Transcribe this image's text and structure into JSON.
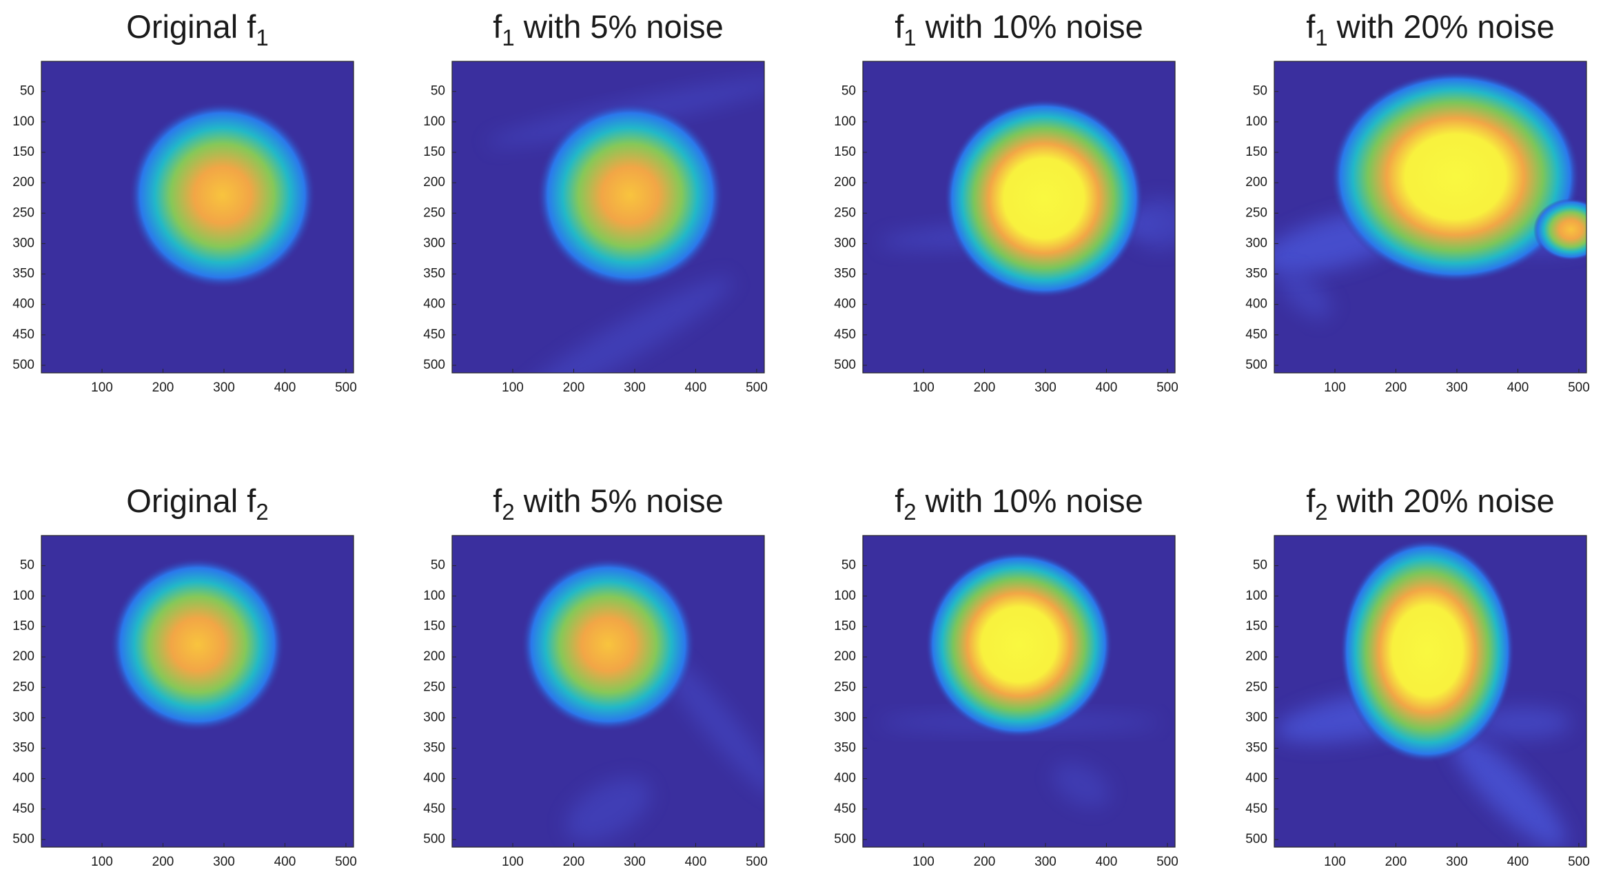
{
  "chart_data": [
    {
      "type": "heatmap",
      "title_parts": [
        "Original f",
        "1"
      ],
      "xlim": [
        0.5,
        512.5
      ],
      "ylim": [
        0.5,
        512.5
      ],
      "xticks": [
        100,
        200,
        300,
        400,
        500
      ],
      "yticks": [
        50,
        100,
        150,
        200,
        250,
        300,
        350,
        400,
        450,
        500
      ]
    },
    {
      "type": "heatmap",
      "title_parts": [
        "f",
        "1",
        " with 5% noise"
      ],
      "xlim": [
        0.5,
        512.5
      ],
      "ylim": [
        0.5,
        512.5
      ],
      "xticks": [
        100,
        200,
        300,
        400,
        500
      ],
      "yticks": [
        50,
        100,
        150,
        200,
        250,
        300,
        350,
        400,
        450,
        500
      ]
    },
    {
      "type": "heatmap",
      "title_parts": [
        "f",
        "1",
        " with 10% noise"
      ],
      "xlim": [
        0.5,
        512.5
      ],
      "ylim": [
        0.5,
        512.5
      ],
      "xticks": [
        100,
        200,
        300,
        400,
        500
      ],
      "yticks": [
        50,
        100,
        150,
        200,
        250,
        300,
        350,
        400,
        450,
        500
      ]
    },
    {
      "type": "heatmap",
      "title_parts": [
        "f",
        "1",
        " with 20% noise"
      ],
      "xlim": [
        0.5,
        512.5
      ],
      "ylim": [
        0.5,
        512.5
      ],
      "xticks": [
        100,
        200,
        300,
        400,
        500
      ],
      "yticks": [
        50,
        100,
        150,
        200,
        250,
        300,
        350,
        400,
        450,
        500
      ]
    },
    {
      "type": "heatmap",
      "title_parts": [
        "Original f",
        "2"
      ],
      "xlim": [
        0.5,
        512.5
      ],
      "ylim": [
        0.5,
        512.5
      ],
      "xticks": [
        100,
        200,
        300,
        400,
        500
      ],
      "yticks": [
        50,
        100,
        150,
        200,
        250,
        300,
        350,
        400,
        450,
        500
      ]
    },
    {
      "type": "heatmap",
      "title_parts": [
        "f",
        "2",
        " with 5% noise"
      ],
      "xlim": [
        0.5,
        512.5
      ],
      "ylim": [
        0.5,
        512.5
      ],
      "xticks": [
        100,
        200,
        300,
        400,
        500
      ],
      "yticks": [
        50,
        100,
        150,
        200,
        250,
        300,
        350,
        400,
        450,
        500
      ]
    },
    {
      "type": "heatmap",
      "title_parts": [
        "f",
        "2",
        " with 10% noise"
      ],
      "xlim": [
        0.5,
        512.5
      ],
      "ylim": [
        0.5,
        512.5
      ],
      "xticks": [
        100,
        200,
        300,
        400,
        500
      ],
      "yticks": [
        50,
        100,
        150,
        200,
        250,
        300,
        350,
        400,
        450,
        500
      ]
    },
    {
      "type": "heatmap",
      "title_parts": [
        "f",
        "2",
        " with 20% noise"
      ],
      "xlim": [
        0.5,
        512.5
      ],
      "ylim": [
        0.5,
        512.5
      ],
      "xticks": [
        100,
        200,
        300,
        400,
        500
      ],
      "yticks": [
        50,
        100,
        150,
        200,
        250,
        300,
        350,
        400,
        450,
        500
      ]
    }
  ]
}
